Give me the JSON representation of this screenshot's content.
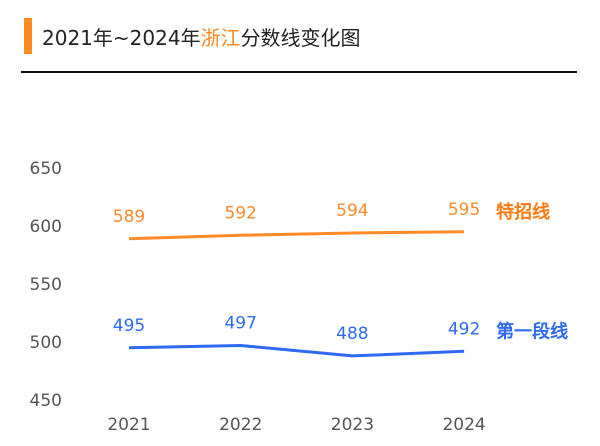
{
  "header": {
    "title_prefix": "2021年~2024年",
    "title_highlight": "浙江",
    "title_suffix": "分数线变化图",
    "accent": "#FF8820"
  },
  "chart_data": {
    "type": "line",
    "title": "2021年~2024年浙江分数线变化图",
    "categories": [
      "2021",
      "2022",
      "2023",
      "2024"
    ],
    "ylim": [
      450,
      650
    ],
    "yticks": [
      "650",
      "600",
      "550",
      "500",
      "450"
    ],
    "grid": false,
    "legend": "end-of-line labels",
    "series": [
      {
        "name": "特招线",
        "values": [
          589,
          592,
          594,
          595
        ],
        "color": "#FF8A2A",
        "label_color": "#FF7A10"
      },
      {
        "name": "第一段线",
        "values": [
          495,
          497,
          488,
          492
        ],
        "color": "#2F6BF0",
        "label_color": "#2F6BF0"
      }
    ]
  }
}
